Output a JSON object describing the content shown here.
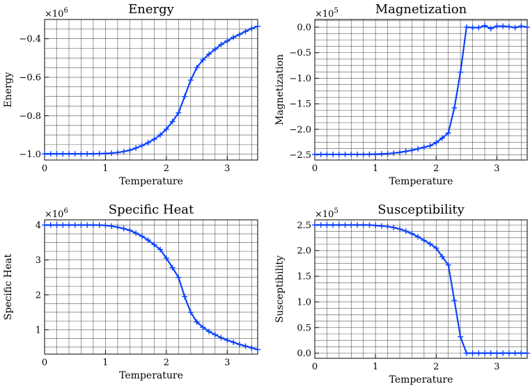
{
  "chart_data": [
    {
      "type": "line",
      "title": "Energy",
      "xlabel": "Temperature",
      "ylabel": "Energy",
      "multiplier": "×10",
      "multiplier_exp": "6",
      "xlim": [
        0,
        3.5
      ],
      "ylim": [
        -1.03,
        -0.3
      ],
      "xticks": [
        0,
        1,
        2,
        3
      ],
      "yticks": [
        -1.0,
        -0.8,
        -0.6,
        -0.4
      ],
      "ytick_labels": [
        "−1.0",
        "−0.8",
        "−0.6",
        "−0.4"
      ],
      "grid": true,
      "series": [
        {
          "color": "#0b41ff",
          "x": [
            0.0,
            0.1,
            0.2,
            0.3,
            0.4,
            0.5,
            0.6,
            0.7,
            0.8,
            0.9,
            1.0,
            1.1,
            1.2,
            1.3,
            1.4,
            1.5,
            1.6,
            1.7,
            1.8,
            1.9,
            2.0,
            2.1,
            2.2,
            2.3,
            2.4,
            2.5,
            2.6,
            2.7,
            2.8,
            2.9,
            3.0,
            3.1,
            3.2,
            3.3,
            3.4,
            3.5
          ],
          "y": [
            -0.998,
            -0.998,
            -0.998,
            -0.998,
            -0.998,
            -0.998,
            -0.998,
            -0.998,
            -0.998,
            -0.997,
            -0.996,
            -0.994,
            -0.991,
            -0.986,
            -0.979,
            -0.968,
            -0.955,
            -0.94,
            -0.922,
            -0.9,
            -0.87,
            -0.83,
            -0.785,
            -0.7,
            -0.615,
            -0.55,
            -0.51,
            -0.48,
            -0.455,
            -0.43,
            -0.412,
            -0.393,
            -0.378,
            -0.362,
            -0.347,
            -0.335
          ]
        }
      ]
    },
    {
      "type": "line",
      "title": "Magnetization",
      "xlabel": "Temperature",
      "ylabel": "Magnetization",
      "multiplier": "×10",
      "multiplier_exp": "5",
      "xlim": [
        0,
        3.5
      ],
      "ylim": [
        -2.6,
        0.15
      ],
      "xticks": [
        0,
        1,
        2,
        3
      ],
      "yticks": [
        0.0,
        -0.5,
        -1.0,
        -1.5,
        -2.0,
        -2.5
      ],
      "ytick_labels": [
        "0.0",
        "−0.5",
        "−1.0",
        "−1.5",
        "−2.0",
        "−2.5"
      ],
      "grid": true,
      "series": [
        {
          "color": "#0b41ff",
          "x": [
            0.0,
            0.1,
            0.2,
            0.3,
            0.4,
            0.5,
            0.6,
            0.7,
            0.8,
            0.9,
            1.0,
            1.1,
            1.2,
            1.3,
            1.4,
            1.5,
            1.6,
            1.7,
            1.8,
            1.9,
            2.0,
            2.1,
            2.2,
            2.3,
            2.4,
            2.5,
            2.6,
            2.7,
            2.8,
            2.9,
            3.0,
            3.1,
            3.2,
            3.3,
            3.4,
            3.5
          ],
          "y": [
            -2.49,
            -2.49,
            -2.49,
            -2.49,
            -2.49,
            -2.49,
            -2.49,
            -2.49,
            -2.49,
            -2.488,
            -2.485,
            -2.48,
            -2.475,
            -2.465,
            -2.45,
            -2.43,
            -2.41,
            -2.38,
            -2.35,
            -2.32,
            -2.26,
            -2.17,
            -2.07,
            -1.58,
            -0.88,
            0.0,
            -0.01,
            -0.01,
            0.03,
            -0.03,
            0.02,
            0.02,
            0.01,
            -0.01,
            0.02,
            0.0
          ]
        }
      ]
    },
    {
      "type": "line",
      "title": "Specific Heat",
      "xlabel": "Temperature",
      "ylabel": "Specific Heat",
      "multiplier": "×10",
      "multiplier_exp": "6",
      "xlim": [
        0,
        3.5
      ],
      "ylim": [
        0.3,
        4.15
      ],
      "xticks": [
        0,
        1,
        2,
        3
      ],
      "yticks": [
        1,
        2,
        3,
        4
      ],
      "ytick_labels": [
        "1",
        "2",
        "3",
        "4"
      ],
      "grid": true,
      "series": [
        {
          "color": "#0b41ff",
          "x": [
            0.0,
            0.1,
            0.2,
            0.3,
            0.4,
            0.5,
            0.6,
            0.7,
            0.8,
            0.9,
            1.0,
            1.1,
            1.2,
            1.3,
            1.4,
            1.5,
            1.6,
            1.7,
            1.8,
            1.9,
            2.0,
            2.1,
            2.2,
            2.3,
            2.4,
            2.5,
            2.6,
            2.7,
            2.8,
            2.9,
            3.0,
            3.1,
            3.2,
            3.3,
            3.4,
            3.5
          ],
          "y": [
            4.0,
            4.0,
            4.0,
            4.0,
            4.0,
            4.0,
            4.0,
            4.0,
            4.0,
            4.0,
            3.99,
            3.97,
            3.94,
            3.9,
            3.85,
            3.77,
            3.68,
            3.57,
            3.44,
            3.3,
            3.05,
            2.78,
            2.5,
            1.95,
            1.5,
            1.22,
            1.07,
            0.95,
            0.86,
            0.77,
            0.7,
            0.64,
            0.58,
            0.53,
            0.48,
            0.43
          ]
        }
      ]
    },
    {
      "type": "line",
      "title": "Susceptibility",
      "xlabel": "Temperature",
      "ylabel": "Susceptibility",
      "multiplier": "×10",
      "multiplier_exp": "5",
      "xlim": [
        0,
        3.5
      ],
      "ylim": [
        -0.1,
        2.6
      ],
      "xticks": [
        0,
        1,
        2,
        3
      ],
      "yticks": [
        0.0,
        0.5,
        1.0,
        1.5,
        2.0,
        2.5
      ],
      "ytick_labels": [
        "0.0",
        "0.5",
        "1.0",
        "1.5",
        "2.0",
        "2.5"
      ],
      "grid": true,
      "series": [
        {
          "color": "#0b41ff",
          "x": [
            0.0,
            0.1,
            0.2,
            0.3,
            0.4,
            0.5,
            0.6,
            0.7,
            0.8,
            0.9,
            1.0,
            1.1,
            1.2,
            1.3,
            1.4,
            1.5,
            1.6,
            1.7,
            1.8,
            1.9,
            2.0,
            2.1,
            2.2,
            2.3,
            2.4,
            2.5,
            2.6,
            2.7,
            2.8,
            2.9,
            3.0,
            3.1,
            3.2,
            3.3,
            3.4,
            3.5
          ],
          "y": [
            2.5,
            2.5,
            2.5,
            2.5,
            2.5,
            2.5,
            2.5,
            2.5,
            2.5,
            2.5,
            2.49,
            2.48,
            2.47,
            2.45,
            2.42,
            2.38,
            2.33,
            2.27,
            2.2,
            2.13,
            2.05,
            1.88,
            1.72,
            1.03,
            0.32,
            0.0,
            0.0,
            0.0,
            0.0,
            0.0,
            0.0,
            0.0,
            0.0,
            0.0,
            0.0,
            0.0
          ]
        }
      ]
    }
  ]
}
